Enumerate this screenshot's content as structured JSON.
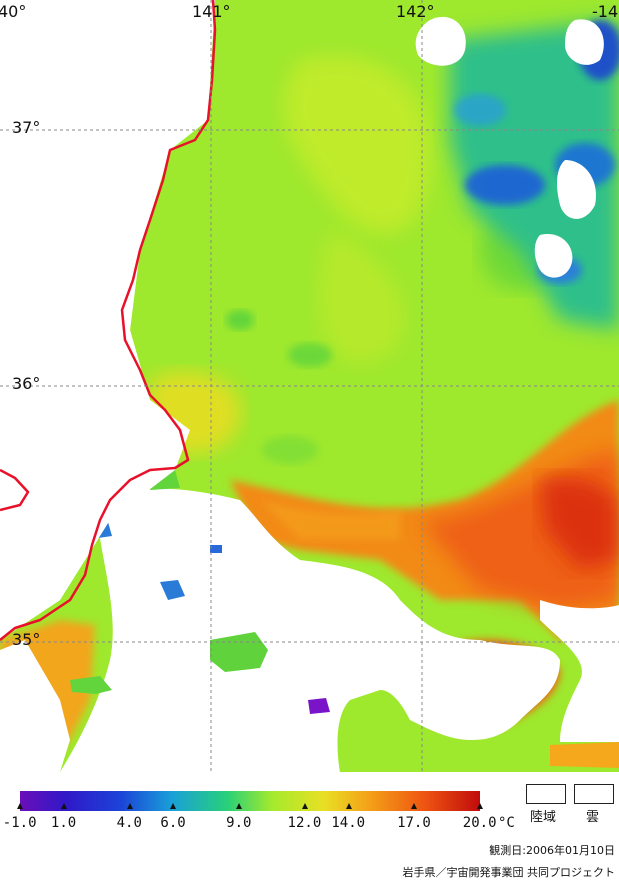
{
  "map": {
    "lon_labels": [
      "40°",
      "141°",
      "142°",
      "-14"
    ],
    "lat_labels": [
      "37°",
      "36°",
      "35°"
    ]
  },
  "colorbar": {
    "ticks": [
      "-1.0",
      "1.0",
      "4.0",
      "6.0",
      "9.0",
      "12.0",
      "14.0",
      "17.0",
      "20.0"
    ],
    "unit": "°C"
  },
  "legend": {
    "land": "陸域",
    "cloud": "雲"
  },
  "footer": {
    "date": "観測日:2006年01月10日",
    "credit": "岩手県／宇宙開発事業団 共同プロジェクト"
  },
  "colors": {
    "coast": "#e8102a",
    "warm": "#f27a12",
    "green": "#a0ec2c",
    "cold": "#1c5fd8"
  }
}
